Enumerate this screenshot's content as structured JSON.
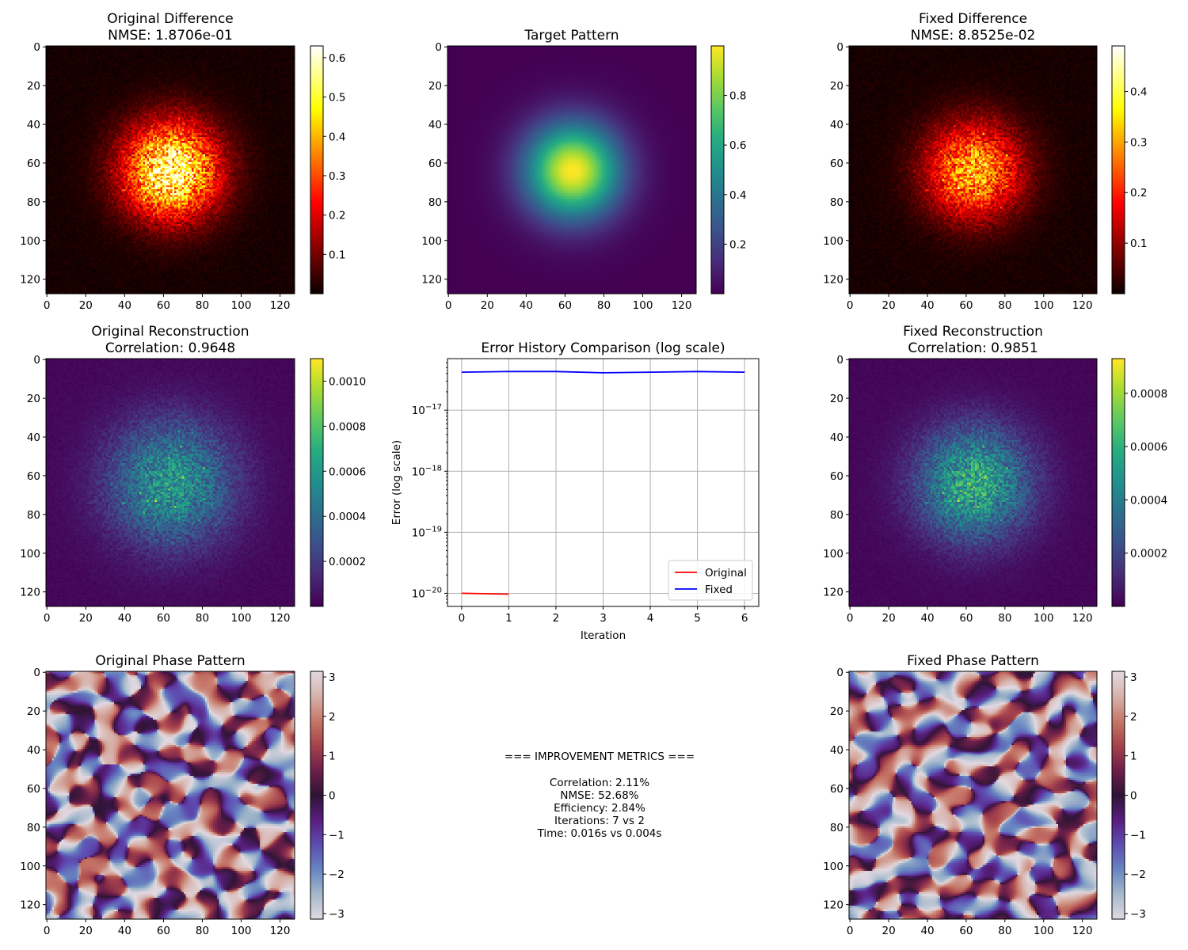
{
  "metrics": {
    "heading": "=== IMPROVEMENT METRICS ===",
    "lines": [
      "Correlation: 2.11%",
      "NMSE: 52.68%",
      "Efficiency: 2.84%",
      "Iterations: 7 vs 2",
      "Time: 0.016s vs 0.004s"
    ]
  },
  "chart_data": [
    {
      "type": "heatmap",
      "title": "Original Difference\nNMSE: 1.8706e-01",
      "colormap": "hot",
      "x_ticks": [
        "0",
        "20",
        "40",
        "60",
        "80",
        "100",
        "120"
      ],
      "y_ticks": [
        "0",
        "20",
        "40",
        "60",
        "80",
        "100",
        "120"
      ],
      "grid_size": 128,
      "pattern": {
        "kind": "noisy_gaussian",
        "center": [
          64,
          64
        ],
        "sigma": 17,
        "peak": 0.55,
        "noise": 0.11
      },
      "colorbar": {
        "ticks": [
          "0.1",
          "0.2",
          "0.3",
          "0.4",
          "0.5",
          "0.6"
        ],
        "tick_values": [
          0.1,
          0.2,
          0.3,
          0.4,
          0.5,
          0.6
        ],
        "range": [
          0.0,
          0.63
        ]
      }
    },
    {
      "type": "heatmap",
      "title": "Target Pattern",
      "colormap": "viridis",
      "x_ticks": [
        "0",
        "20",
        "40",
        "60",
        "80",
        "100",
        "120"
      ],
      "y_ticks": [
        "0",
        "20",
        "40",
        "60",
        "80",
        "100",
        "120"
      ],
      "grid_size": 128,
      "pattern": {
        "kind": "gaussian",
        "center": [
          64,
          64
        ],
        "sigma": 17,
        "peak": 1.0
      },
      "colorbar": {
        "ticks": [
          "0.2",
          "0.4",
          "0.6",
          "0.8"
        ],
        "tick_values": [
          0.2,
          0.4,
          0.6,
          0.8
        ],
        "range": [
          0.0,
          1.0
        ]
      }
    },
    {
      "type": "heatmap",
      "title": "Fixed Difference\nNMSE: 8.8525e-02",
      "colormap": "hot",
      "x_ticks": [
        "0",
        "20",
        "40",
        "60",
        "80",
        "100",
        "120"
      ],
      "y_ticks": [
        "0",
        "20",
        "40",
        "60",
        "80",
        "100",
        "120"
      ],
      "grid_size": 128,
      "pattern": {
        "kind": "noisy_gaussian",
        "center": [
          64,
          64
        ],
        "sigma": 17,
        "peak": 0.3,
        "noise": 0.09
      },
      "colorbar": {
        "ticks": [
          "0.1",
          "0.2",
          "0.3",
          "0.4"
        ],
        "tick_values": [
          0.1,
          0.2,
          0.3,
          0.4
        ],
        "range": [
          0.0,
          0.49
        ]
      }
    },
    {
      "type": "heatmap",
      "title": "Original Reconstruction\nCorrelation: 0.9648",
      "colormap": "viridis",
      "x_ticks": [
        "0",
        "20",
        "40",
        "60",
        "80",
        "100",
        "120"
      ],
      "y_ticks": [
        "0",
        "20",
        "40",
        "60",
        "80",
        "100",
        "120"
      ],
      "grid_size": 128,
      "pattern": {
        "kind": "noisy_gaussian",
        "center": [
          64,
          64
        ],
        "sigma": 22,
        "peak": 0.00055,
        "noise": 0.00018
      },
      "colorbar": {
        "ticks": [
          "0.0002",
          "0.0004",
          "0.0006",
          "0.0008",
          "0.0010"
        ],
        "tick_values": [
          0.0002,
          0.0004,
          0.0006,
          0.0008,
          0.001
        ],
        "range": [
          0.0,
          0.0011
        ]
      }
    },
    {
      "type": "line",
      "title": "Error History Comparison (log scale)",
      "xlabel": "Iteration",
      "ylabel": "Error (log scale)",
      "y_scale": "log",
      "x_ticks": [
        0,
        1,
        2,
        3,
        4,
        5,
        6
      ],
      "xlim": [
        -0.3,
        6.3
      ],
      "y_ticks": [
        "1e-20",
        "1e-19",
        "1e-18",
        "1e-17"
      ],
      "ylim": [
        6.1e-21,
        7e-17
      ],
      "grid": true,
      "legend_position": "lower right",
      "series": [
        {
          "name": "Original",
          "color": "#ff0000",
          "x": [
            0,
            1
          ],
          "y": [
            1e-20,
            9.7e-21
          ]
        },
        {
          "name": "Fixed",
          "color": "#0000ff",
          "x": [
            0,
            1,
            2,
            3,
            4,
            5,
            6
          ],
          "y": [
            4.2e-17,
            4.3e-17,
            4.3e-17,
            4.1e-17,
            4.2e-17,
            4.3e-17,
            4.2e-17
          ]
        }
      ]
    },
    {
      "type": "heatmap",
      "title": "Fixed Reconstruction\nCorrelation: 0.9851",
      "colormap": "viridis",
      "x_ticks": [
        "0",
        "20",
        "40",
        "60",
        "80",
        "100",
        "120"
      ],
      "y_ticks": [
        "0",
        "20",
        "40",
        "60",
        "80",
        "100",
        "120"
      ],
      "grid_size": 128,
      "pattern": {
        "kind": "noisy_gaussian",
        "center": [
          64,
          64
        ],
        "sigma": 20,
        "peak": 0.00055,
        "noise": 0.00013
      },
      "colorbar": {
        "ticks": [
          "0.0002",
          "0.0004",
          "0.0006",
          "0.0008"
        ],
        "tick_values": [
          0.0002,
          0.0004,
          0.0006,
          0.0008
        ],
        "range": [
          0.0,
          0.00093
        ]
      }
    },
    {
      "type": "heatmap",
      "title": "Original Phase Pattern",
      "colormap": "twilight",
      "x_ticks": [
        "0",
        "20",
        "40",
        "60",
        "80",
        "100",
        "120"
      ],
      "y_ticks": [
        "0",
        "20",
        "40",
        "60",
        "80",
        "100",
        "120"
      ],
      "grid_size": 128,
      "pattern": {
        "kind": "random_phase",
        "seed": 7
      },
      "colorbar": {
        "ticks": [
          "−3",
          "−2",
          "−1",
          "0",
          "1",
          "2",
          "3"
        ],
        "tick_values": [
          -3,
          -2,
          -1,
          0,
          1,
          2,
          3
        ],
        "range": [
          -3.1416,
          3.1416
        ]
      }
    },
    {
      "type": "heatmap",
      "title": "Fixed Phase Pattern",
      "colormap": "twilight",
      "x_ticks": [
        "0",
        "20",
        "40",
        "60",
        "80",
        "100",
        "120"
      ],
      "y_ticks": [
        "0",
        "20",
        "40",
        "60",
        "80",
        "100",
        "120"
      ],
      "grid_size": 128,
      "pattern": {
        "kind": "random_phase",
        "seed": 11
      },
      "colorbar": {
        "ticks": [
          "−3",
          "−2",
          "−1",
          "0",
          "1",
          "2",
          "3"
        ],
        "tick_values": [
          -3,
          -2,
          -1,
          0,
          1,
          2,
          3
        ],
        "range": [
          -3.1416,
          3.1416
        ]
      }
    }
  ]
}
